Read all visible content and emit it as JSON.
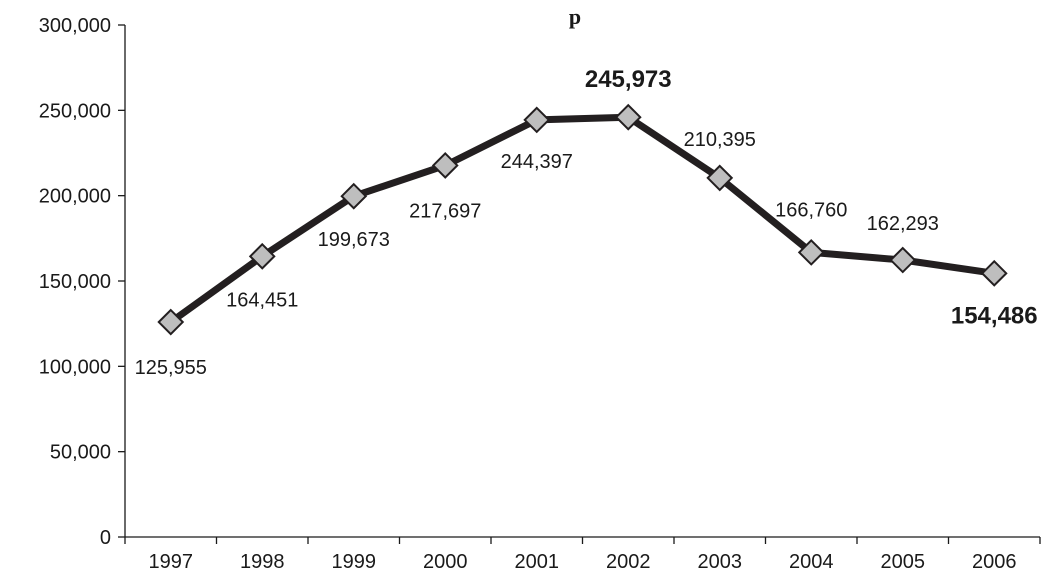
{
  "chart_data": {
    "type": "line",
    "title": "...p...",
    "categories": [
      "1997",
      "1998",
      "1999",
      "2000",
      "2001",
      "2002",
      "2003",
      "2004",
      "2005",
      "2006"
    ],
    "series": [
      {
        "values": [
          125955,
          164451,
          199673,
          217697,
          244397,
          245973,
          210395,
          166760,
          162293,
          154486
        ],
        "labels": [
          "125,955",
          "164,451",
          "199,673",
          "217,697",
          "244,397",
          "245,973",
          "210,395",
          "166,760",
          "162,293",
          "154,486"
        ],
        "bold_labels": [
          false,
          false,
          false,
          false,
          false,
          true,
          false,
          false,
          false,
          true
        ]
      }
    ],
    "y_ticks": [
      "0",
      "50,000",
      "100,000",
      "150,000",
      "200,000",
      "250,000",
      "300,000"
    ],
    "ylim": [
      0,
      300000
    ],
    "grid": false,
    "line_color": "#231f20",
    "marker_fill": "#bebebe",
    "marker": "diamond"
  }
}
